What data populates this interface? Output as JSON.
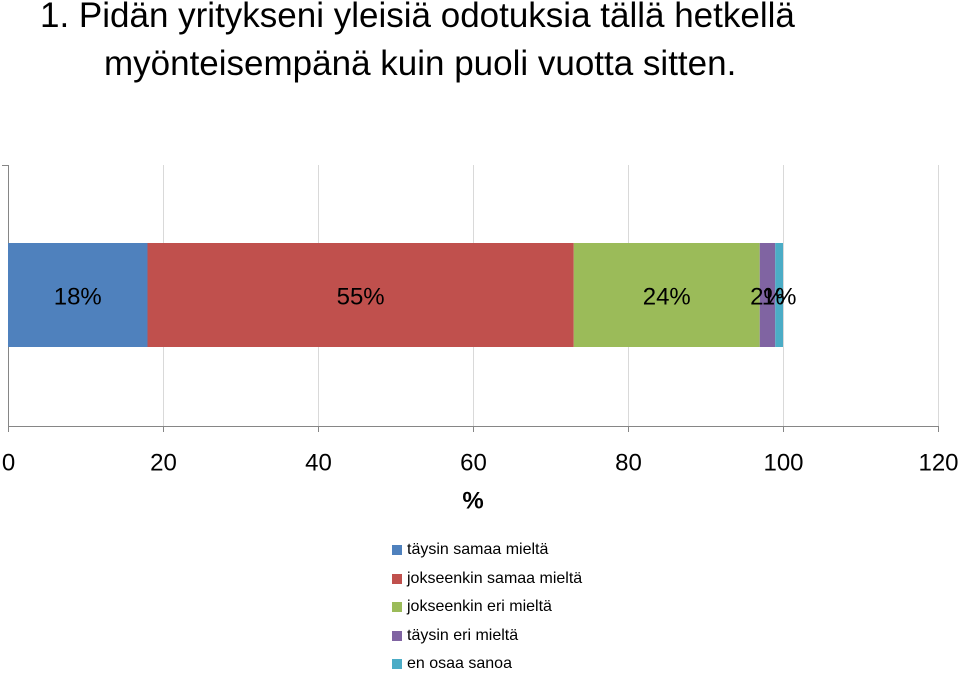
{
  "title": {
    "line1": "1. Pidän yritykseni yleisiä odotuksia tällä hetkellä",
    "line2": "myönteisempänä kuin puoli vuotta sitten."
  },
  "chart_data": {
    "type": "bar",
    "orientation": "horizontal",
    "stacked": true,
    "title": "1. Pidän yritykseni yleisiä odotuksia tällä hetkellä myönteisempänä kuin puoli vuotta sitten.",
    "xlabel": "%",
    "ylabel": "",
    "xlim": [
      0,
      120
    ],
    "x_ticks": [
      0,
      20,
      40,
      60,
      80,
      100,
      120
    ],
    "grid": true,
    "legend_position": "bottom",
    "series": [
      {
        "name": "täysin samaa mieltä",
        "value": 18,
        "label": "18%",
        "color": "#4F81BD"
      },
      {
        "name": "jokseenkin samaa mieltä",
        "value": 55,
        "label": "55%",
        "color": "#C0504D"
      },
      {
        "name": "jokseenkin eri mieltä",
        "value": 24,
        "label": "24%",
        "color": "#9BBB59"
      },
      {
        "name": "täysin eri mieltä",
        "value": 2,
        "label": "2%",
        "color": "#8064A2"
      },
      {
        "name": "en osaa sanoa",
        "value": 1,
        "label": "1%",
        "color": "#4BACC6"
      }
    ]
  }
}
